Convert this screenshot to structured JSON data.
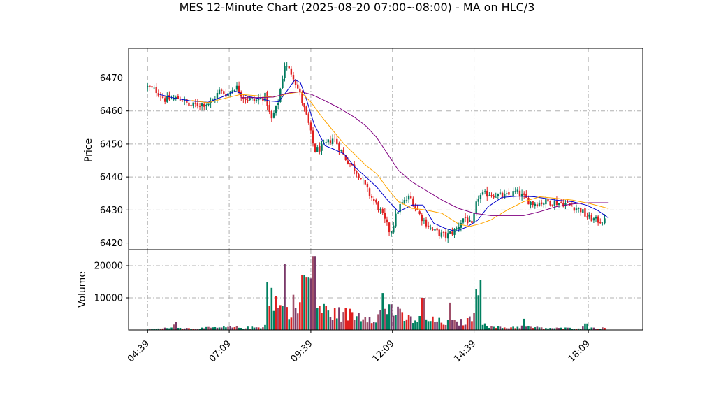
{
  "chart_data": [
    {
      "type": "candlestick",
      "title": "MES 12-Minute Chart (2025-08-20 07:00~08:00) - MA on HLC/3",
      "ylabel": "Price",
      "ylim": [
        6418,
        6479
      ],
      "yticks": [
        6420,
        6430,
        6440,
        6450,
        6460,
        6470
      ],
      "grid": true,
      "up_color": "#007a5e",
      "down_color": "#e02020",
      "price_path": [
        [
          "04:39",
          6467.5
        ],
        [
          "05:00",
          6466.0
        ],
        [
          "05:15",
          6463.5
        ],
        [
          "05:45",
          6463.8
        ],
        [
          "06:00",
          6461.5
        ],
        [
          "06:20",
          6462.0
        ],
        [
          "06:40",
          6462.5
        ],
        [
          "06:55",
          6466.0
        ],
        [
          "07:09",
          6465.0
        ],
        [
          "07:25",
          6467.5
        ],
        [
          "07:40",
          6464.0
        ],
        [
          "08:00",
          6463.0
        ],
        [
          "08:20",
          6464.5
        ],
        [
          "08:30",
          6457.0
        ],
        [
          "08:42",
          6462.0
        ],
        [
          "08:55",
          6474.0
        ],
        [
          "09:10",
          6471.0
        ],
        [
          "09:25",
          6464.0
        ],
        [
          "09:39",
          6456.0
        ],
        [
          "09:50",
          6448.0
        ],
        [
          "10:05",
          6449.0
        ],
        [
          "10:25",
          6452.0
        ],
        [
          "10:45",
          6446.0
        ],
        [
          "11:10",
          6441.0
        ],
        [
          "11:30",
          6435.0
        ],
        [
          "11:50",
          6430.0
        ],
        [
          "12:09",
          6423.0
        ],
        [
          "12:25",
          6431.0
        ],
        [
          "12:45",
          6434.0
        ],
        [
          "13:05",
          6428.0
        ],
        [
          "13:25",
          6424.0
        ],
        [
          "13:50",
          6422.0
        ],
        [
          "14:10",
          6424.0
        ],
        [
          "14:25",
          6428.0
        ],
        [
          "14:39",
          6425.0
        ],
        [
          "14:50",
          6434.0
        ],
        [
          "15:10",
          6435.0
        ],
        [
          "15:40",
          6434.0
        ],
        [
          "16:00",
          6435.5
        ],
        [
          "16:30",
          6432.0
        ],
        [
          "17:00",
          6432.5
        ],
        [
          "17:30",
          6432.0
        ],
        [
          "18:00",
          6430.0
        ],
        [
          "18:09",
          6428.0
        ],
        [
          "18:25",
          6427.0
        ],
        [
          "18:40",
          6426.5
        ]
      ],
      "series": [
        {
          "color": "#0000cc",
          "points": [
            [
              "05:01",
              6465
            ],
            [
              "05:30",
              6463.8
            ],
            [
              "06:00",
              6463.0
            ],
            [
              "06:30",
              6462.6
            ],
            [
              "07:00",
              6464.5
            ],
            [
              "07:20",
              6466.0
            ],
            [
              "07:45",
              6464.3
            ],
            [
              "08:10",
              6463.6
            ],
            [
              "08:25",
              6463.0
            ],
            [
              "08:40",
              6462.8
            ],
            [
              "08:55",
              6466.0
            ],
            [
              "09:10",
              6469.5
            ],
            [
              "09:20",
              6468.5
            ],
            [
              "09:30",
              6464.0
            ],
            [
              "09:45",
              6456.0
            ],
            [
              "10:05",
              6449.5
            ],
            [
              "10:20",
              6448.5
            ],
            [
              "10:40",
              6447.0
            ],
            [
              "11:00",
              6443.0
            ],
            [
              "11:20",
              6440.0
            ],
            [
              "11:40",
              6437.0
            ],
            [
              "12:00",
              6433.0
            ],
            [
              "12:20",
              6429.5
            ],
            [
              "12:45",
              6431.5
            ],
            [
              "13:05",
              6431.5
            ],
            [
              "13:25",
              6426.0
            ],
            [
              "13:45",
              6424.5
            ],
            [
              "14:05",
              6423.5
            ],
            [
              "14:25",
              6424.8
            ],
            [
              "14:45",
              6426.8
            ],
            [
              "15:05",
              6431.0
            ],
            [
              "15:30",
              6433.8
            ],
            [
              "16:00",
              6434.2
            ],
            [
              "16:30",
              6434.0
            ],
            [
              "17:10",
              6433.0
            ],
            [
              "17:40",
              6432.5
            ],
            [
              "18:05",
              6431.5
            ],
            [
              "18:25",
              6430.0
            ],
            [
              "18:45",
              6427.7
            ]
          ]
        },
        {
          "color": "#ffa500",
          "points": [
            [
              "06:00",
              6463.2
            ],
            [
              "06:30",
              6462.5
            ],
            [
              "07:00",
              6463.8
            ],
            [
              "07:30",
              6465.0
            ],
            [
              "08:00",
              6464.6
            ],
            [
              "08:30",
              6464.2
            ],
            [
              "09:00",
              6465.3
            ],
            [
              "09:20",
              6465.8
            ],
            [
              "09:40",
              6462.5
            ],
            [
              "10:00",
              6458.0
            ],
            [
              "10:20",
              6454.0
            ],
            [
              "10:40",
              6450.0
            ],
            [
              "11:00",
              6446.8
            ],
            [
              "11:20",
              6443.5
            ],
            [
              "11:40",
              6441.0
            ],
            [
              "12:00",
              6436.5
            ],
            [
              "12:20",
              6432.5
            ],
            [
              "12:45",
              6430.5
            ],
            [
              "13:10",
              6430.0
            ],
            [
              "13:40",
              6429.0
            ],
            [
              "14:10",
              6425.8
            ],
            [
              "14:30",
              6425.0
            ],
            [
              "14:50",
              6425.8
            ],
            [
              "15:10",
              6427.0
            ],
            [
              "15:40",
              6430.0
            ],
            [
              "16:10",
              6432.5
            ],
            [
              "16:40",
              6434.0
            ],
            [
              "17:10",
              6433.5
            ],
            [
              "17:40",
              6433.0
            ],
            [
              "18:10",
              6432.0
            ],
            [
              "18:45",
              6430.5
            ]
          ]
        },
        {
          "color": "#800080",
          "points": [
            [
              "07:30",
              6464.0
            ],
            [
              "08:00",
              6464.0
            ],
            [
              "08:30",
              6464.2
            ],
            [
              "09:00",
              6465.5
            ],
            [
              "09:20",
              6465.8
            ],
            [
              "09:40",
              6465.0
            ],
            [
              "10:00",
              6463.5
            ],
            [
              "10:30",
              6461.0
            ],
            [
              "11:00",
              6458.0
            ],
            [
              "11:20",
              6455.5
            ],
            [
              "11:40",
              6452.0
            ],
            [
              "12:00",
              6447.0
            ],
            [
              "12:20",
              6442.0
            ],
            [
              "12:45",
              6438.5
            ],
            [
              "13:10",
              6436.0
            ],
            [
              "13:40",
              6433.0
            ],
            [
              "14:10",
              6430.5
            ],
            [
              "14:40",
              6429.0
            ],
            [
              "15:10",
              6428.3
            ],
            [
              "15:40",
              6428.3
            ],
            [
              "16:10",
              6428.3
            ],
            [
              "16:40",
              6429.5
            ],
            [
              "17:10",
              6431.0
            ],
            [
              "17:40",
              6431.8
            ],
            [
              "18:10",
              6432.2
            ],
            [
              "18:45",
              6432.2
            ]
          ]
        }
      ]
    },
    {
      "type": "bar",
      "ylabel": "Volume",
      "ylim": [
        0,
        25000
      ],
      "yticks": [
        10000,
        20000
      ],
      "grid": true,
      "xticks": [
        "04:39",
        "07:09",
        "09:39",
        "12:09",
        "14:39",
        "18:09"
      ],
      "x_range": [
        "04:04",
        "19:49"
      ],
      "volume_profile": [
        [
          "04:39",
          300
        ],
        [
          "05:10",
          500
        ],
        [
          "05:30",
          1800
        ],
        [
          "05:45",
          600
        ],
        [
          "06:10",
          500
        ],
        [
          "06:30",
          700
        ],
        [
          "06:55",
          800
        ],
        [
          "07:10",
          900
        ],
        [
          "07:35",
          800
        ],
        [
          "07:55",
          800
        ],
        [
          "08:10",
          1000
        ],
        [
          "08:20",
          4000
        ],
        [
          "08:28",
          13000
        ],
        [
          "08:40",
          8000
        ],
        [
          "08:55",
          6000
        ],
        [
          "09:05",
          9000
        ],
        [
          "09:15",
          7000
        ],
        [
          "09:25",
          10000
        ],
        [
          "09:33",
          15000
        ],
        [
          "09:45",
          10000
        ],
        [
          "10:00",
          7000
        ],
        [
          "10:20",
          5500
        ],
        [
          "10:40",
          5500
        ],
        [
          "11:00",
          5000
        ],
        [
          "11:20",
          5000
        ],
        [
          "11:40",
          4500
        ],
        [
          "11:55",
          7000
        ],
        [
          "12:09",
          7000
        ],
        [
          "12:30",
          4000
        ],
        [
          "12:50",
          3500
        ],
        [
          "13:10",
          3500
        ],
        [
          "13:30",
          3000
        ],
        [
          "13:50",
          2500
        ],
        [
          "14:10",
          2500
        ],
        [
          "14:30",
          3000
        ],
        [
          "14:39",
          8000
        ],
        [
          "14:48",
          12000
        ],
        [
          "14:55",
          3000
        ],
        [
          "15:10",
          1000
        ],
        [
          "15:40",
          800
        ],
        [
          "16:10",
          1200
        ],
        [
          "16:40",
          700
        ],
        [
          "17:10",
          600
        ],
        [
          "17:40",
          600
        ],
        [
          "18:00",
          900
        ],
        [
          "18:20",
          700
        ],
        [
          "18:45",
          600
        ]
      ],
      "volume_spikes": [
        [
          "05:30",
          2500
        ],
        [
          "08:20",
          15000
        ],
        [
          "08:50",
          20500
        ],
        [
          "09:25",
          17000
        ],
        [
          "09:33",
          16500
        ],
        [
          "09:45",
          23000
        ],
        [
          "11:50",
          11500
        ],
        [
          "12:05",
          8000
        ],
        [
          "13:05",
          10000
        ],
        [
          "13:55",
          8500
        ],
        [
          "14:50",
          15500
        ],
        [
          "16:10",
          3500
        ],
        [
          "18:05",
          2000
        ]
      ]
    }
  ]
}
